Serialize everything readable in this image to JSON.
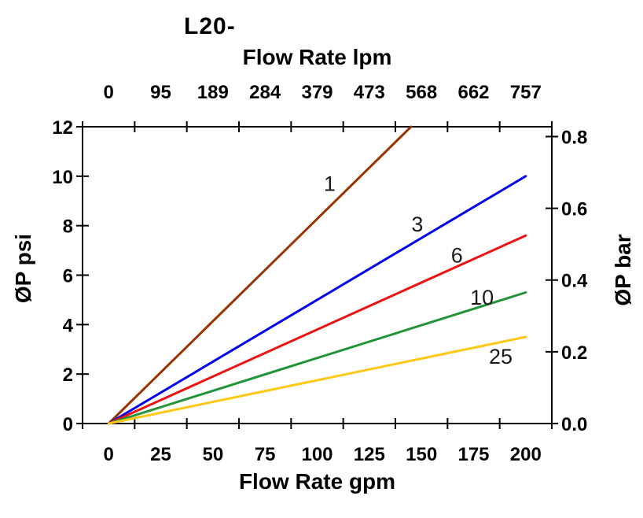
{
  "title": "L20-",
  "chart_data": {
    "type": "line",
    "title": "L20-",
    "grid": false,
    "legend": "inline-labels-on-lines",
    "top_axis": {
      "label": "Flow Rate lpm",
      "ticks": [
        "0",
        "95",
        "189",
        "284",
        "379",
        "473",
        "568",
        "662",
        "757"
      ]
    },
    "bottom_axis": {
      "label": "Flow Rate gpm",
      "ticks": [
        "0",
        "25",
        "50",
        "75",
        "100",
        "125",
        "150",
        "175",
        "200"
      ],
      "range_gpm": [
        0,
        200
      ]
    },
    "left_axis": {
      "label": "ØP psi",
      "ticks": [
        "0",
        "2",
        "4",
        "6",
        "8",
        "10",
        "12"
      ],
      "range": [
        0,
        12
      ]
    },
    "right_axis": {
      "label": "ØP bar",
      "ticks": [
        "0.0",
        "0.2",
        "0.4",
        "0.6",
        "0.8"
      ],
      "range": [
        0,
        0.8
      ],
      "psi_per_bar": 14.5038
    },
    "series": [
      {
        "name": "1",
        "color": "#993300",
        "points_gpm_psi": [
          [
            0,
            0
          ],
          [
            145,
            12
          ]
        ],
        "label_pos": {
          "gpm": 106,
          "psi": 9.7
        }
      },
      {
        "name": "3",
        "color": "#0000EE",
        "points_gpm_psi": [
          [
            0,
            0
          ],
          [
            200,
            10
          ]
        ],
        "label_pos": {
          "gpm": 148,
          "psi": 8.05
        }
      },
      {
        "name": "6",
        "color": "#EE1111",
        "points_gpm_psi": [
          [
            0,
            0
          ],
          [
            200,
            7.6
          ]
        ],
        "label_pos": {
          "gpm": 167,
          "psi": 6.8
        }
      },
      {
        "name": "10",
        "color": "#229437",
        "points_gpm_psi": [
          [
            0,
            0
          ],
          [
            200,
            5.3
          ]
        ],
        "label_pos": {
          "gpm": 179,
          "psi": 5.1
        }
      },
      {
        "name": "25",
        "color": "#FFC814",
        "points_gpm_psi": [
          [
            0,
            0
          ],
          [
            200,
            3.5
          ]
        ],
        "label_pos": {
          "gpm": 188,
          "psi": 2.7
        }
      }
    ]
  }
}
